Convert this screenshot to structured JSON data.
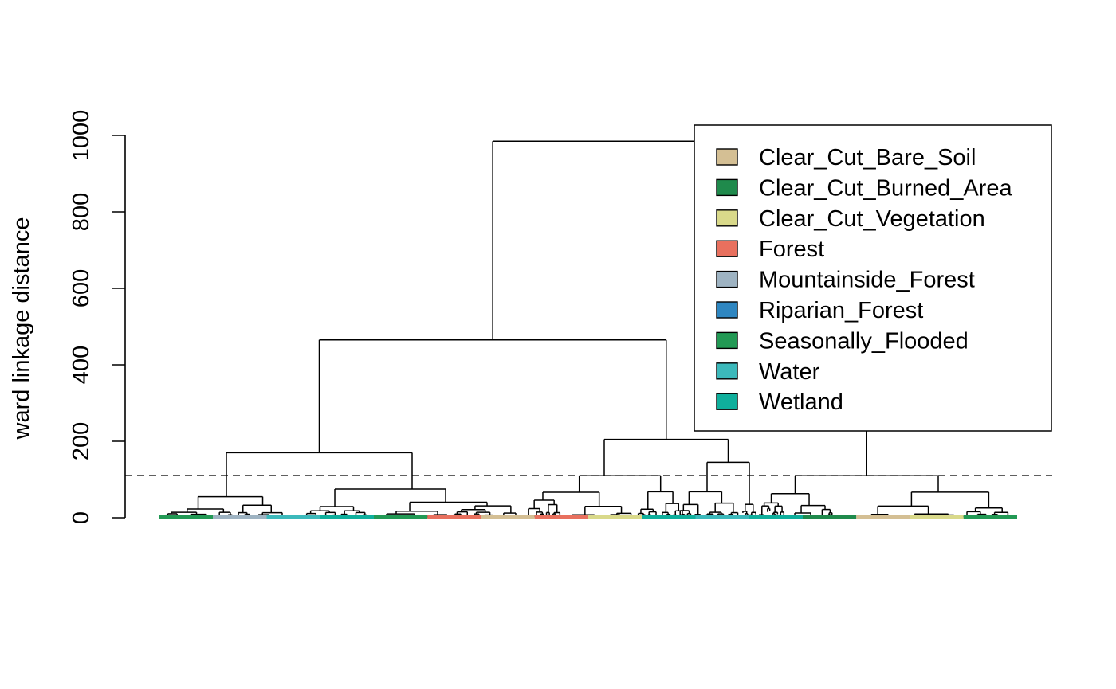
{
  "chart_data": {
    "type": "dendrogram",
    "title": "",
    "xlabel": "",
    "ylabel": "ward linkage distance",
    "ylim": [
      0,
      1000
    ],
    "yticks": [
      0,
      200,
      400,
      600,
      800,
      1000
    ],
    "ytick_labels": [
      "0",
      "200",
      "400",
      "600",
      "800",
      "1000"
    ],
    "cut_height": 110,
    "grid": false,
    "legend_position": "top-right",
    "legend": [
      {
        "label": "Clear_Cut_Bare_Soil",
        "color": "#D4BF94"
      },
      {
        "label": "Clear_Cut_Burned_Area",
        "color": "#1F8A4C"
      },
      {
        "label": "Clear_Cut_Vegetation",
        "color": "#D9D98A"
      },
      {
        "label": "Forest",
        "color": "#E8705E"
      },
      {
        "label": "Mountainside_Forest",
        "color": "#9EB3C2"
      },
      {
        "label": "Riparian_Forest",
        "color": "#2E86C1"
      },
      {
        "label": "Seasonally_Flooded",
        "color": "#229954"
      },
      {
        "label": "Water",
        "color": "#3CB9BB"
      },
      {
        "label": "Wetland",
        "color": "#0FAF9C"
      }
    ],
    "merges": [
      {
        "name": "root",
        "height": 985,
        "left": "A",
        "right": "B"
      },
      {
        "name": "A",
        "height": 465,
        "left": "C1",
        "right": "C2"
      },
      {
        "name": "B",
        "height": 110,
        "left": "B_left",
        "right": "B_right"
      },
      {
        "name": "C1",
        "height": 170,
        "left": "G1",
        "right": "G2"
      },
      {
        "name": "C2",
        "height": 205,
        "left": "G3",
        "right": "G4"
      },
      {
        "name": "G1",
        "height": 55
      },
      {
        "name": "G2",
        "height": 75
      },
      {
        "name": "G3",
        "height": 110
      },
      {
        "name": "G4",
        "height": 145
      }
    ],
    "leaf_class_sequence": [
      "Seasonally_Flooded",
      "Mountainside_Forest",
      "Water",
      "Wetland",
      "Seasonally_Flooded",
      "Forest",
      "Clear_Cut_Bare_Soil",
      "Forest",
      "Clear_Cut_Vegetation",
      "Wetland",
      "Water",
      "Wetland",
      "Clear_Cut_Burned_Area",
      "Clear_Cut_Bare_Soil",
      "Clear_Cut_Vegetation",
      "Seasonally_Flooded"
    ]
  }
}
